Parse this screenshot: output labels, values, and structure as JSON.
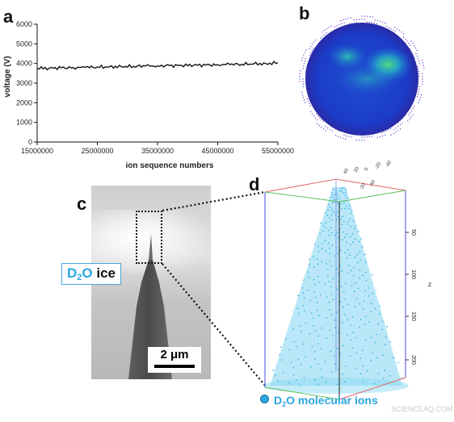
{
  "panels": {
    "a": "a",
    "b": "b",
    "c": "c",
    "d": "d"
  },
  "chart_data": {
    "type": "line",
    "xlabel": "ion sequence numbers",
    "ylabel": "voltage (V)",
    "xlim": [
      15000000,
      55000000
    ],
    "ylim": [
      0,
      6000
    ],
    "x_ticks": [
      "15000000",
      "25000000",
      "35000000",
      "45000000",
      "55000000"
    ],
    "y_ticks": [
      "0",
      "1000",
      "2000",
      "3000",
      "4000",
      "5000",
      "6000"
    ],
    "grid": false,
    "series": [
      {
        "x": [
          15000000,
          17000000,
          19000000,
          21000000,
          23000000,
          25000000,
          27000000,
          29000000,
          31000000,
          33000000,
          35000000,
          37000000,
          39000000,
          41000000,
          43000000,
          45000000,
          47000000,
          49000000,
          51000000,
          53000000,
          55000000
        ],
        "values": [
          3750,
          3760,
          3780,
          3790,
          3800,
          3820,
          3830,
          3840,
          3850,
          3870,
          3880,
          3890,
          3900,
          3910,
          3920,
          3940,
          3950,
          3960,
          3980,
          3990,
          4030
        ]
      }
    ]
  },
  "sem": {
    "ice_label_main": "D",
    "ice_label_sub": "2",
    "ice_label_o": "O",
    "ice_label_word": " ice",
    "scale_bar": "2 μm"
  },
  "reconstruction": {
    "z_ticks": [
      "50",
      "100",
      "150",
      "200"
    ],
    "z_axis_label": "z",
    "top_ticks_a": [
      "40",
      "20",
      "0",
      "-20",
      "-40"
    ],
    "top_ticks_b": [
      "-20",
      "-40"
    ],
    "ions_label_d": "D",
    "ions_label_sub": "2",
    "ions_label_rest": "O molecular ions"
  },
  "colors": {
    "ion_cyan": "#2ba7e0",
    "line": "#111111"
  },
  "watermark": "SCIENCEAQ.COM"
}
